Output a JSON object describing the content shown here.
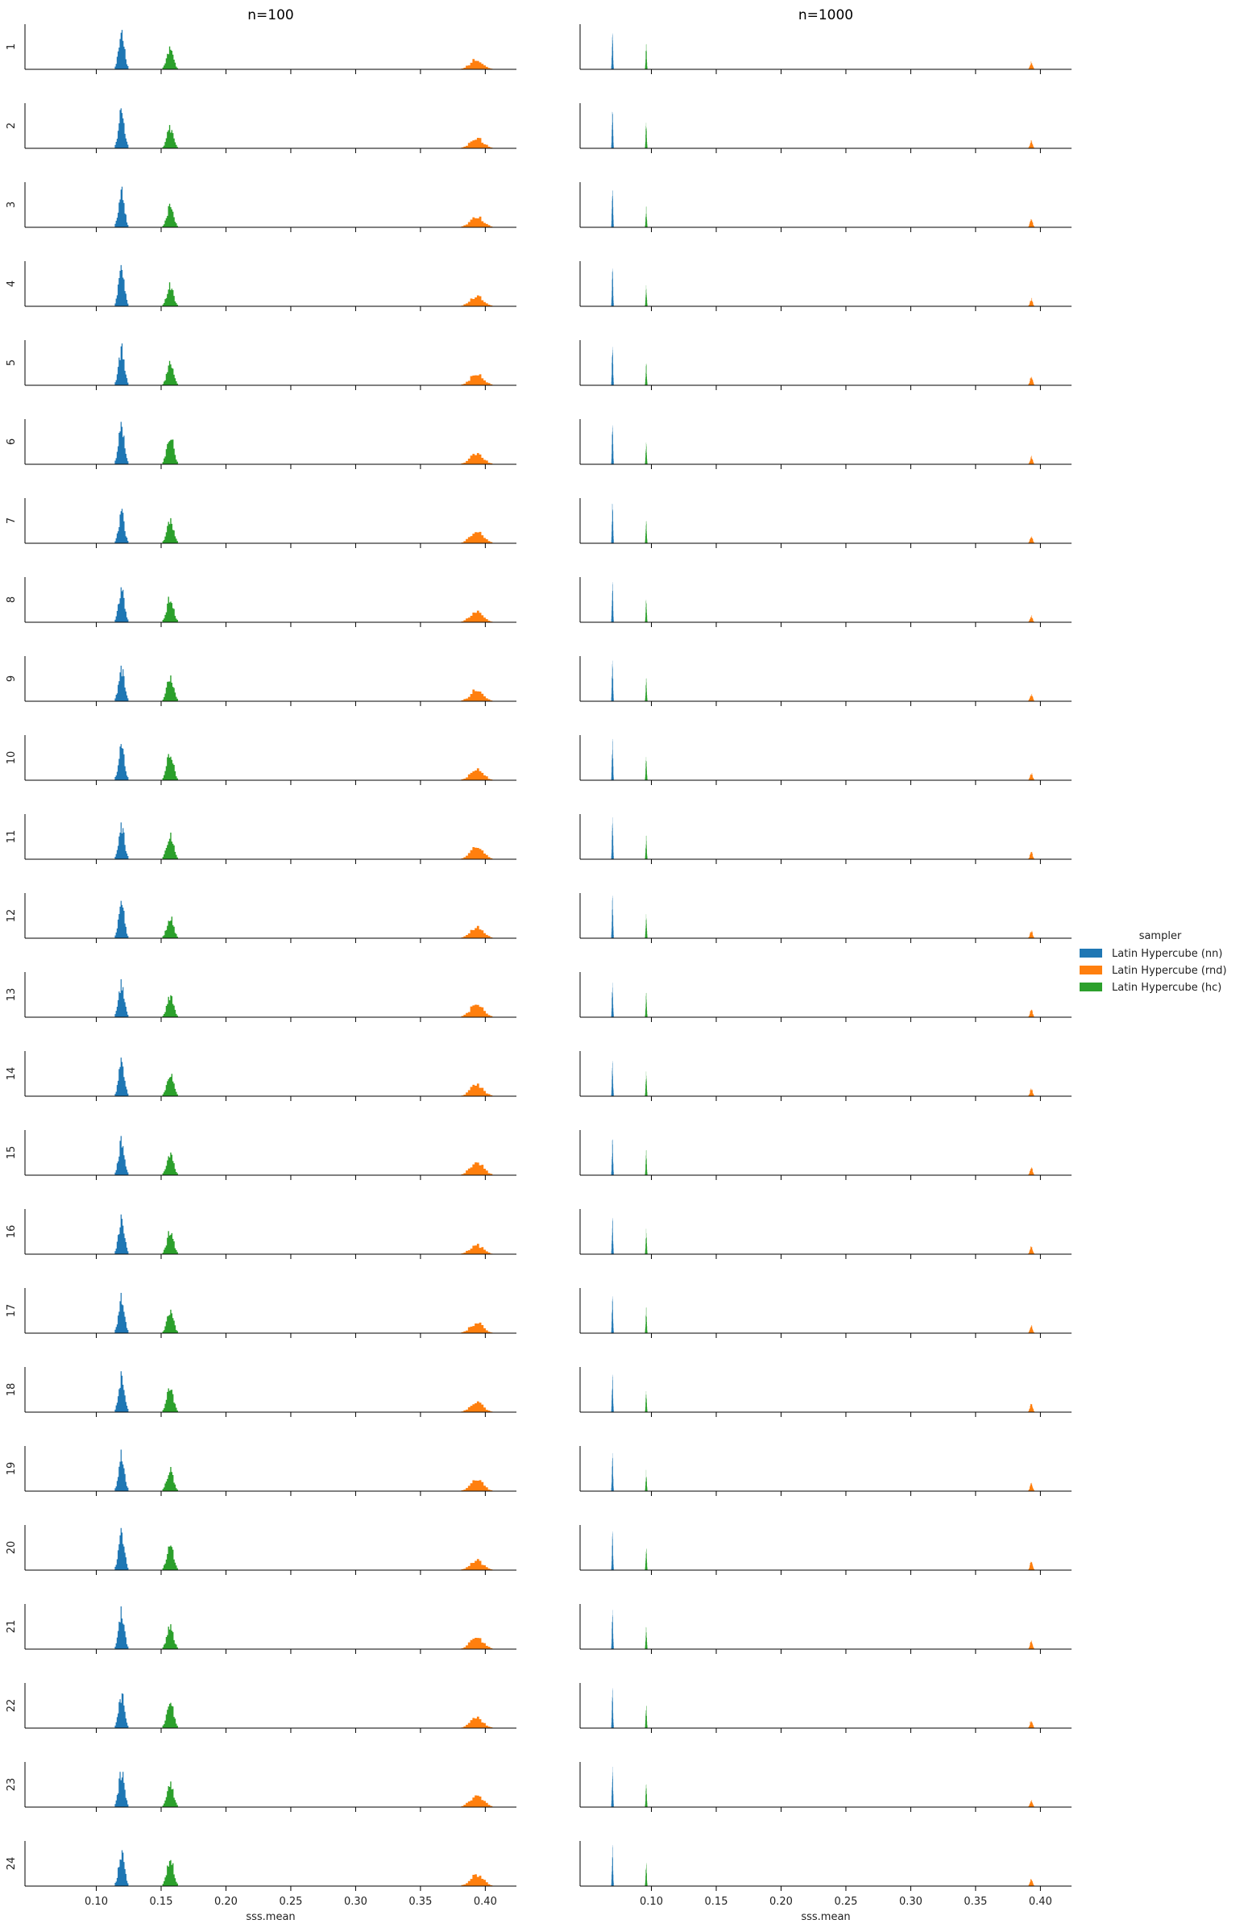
{
  "chart_data": {
    "type": "histogram-facet-grid",
    "xlabel": "sss.mean",
    "x_ticks": [
      0.1,
      0.15,
      0.2,
      0.25,
      0.3,
      0.35,
      0.4
    ],
    "x_tick_labels": [
      "0.10",
      "0.15",
      "0.20",
      "0.25",
      "0.30",
      "0.35",
      "0.40"
    ],
    "xlim": [
      0.045,
      0.424
    ],
    "grid": false,
    "legend_placement": "right",
    "legend_title": "sampler",
    "series": [
      {
        "name": "Latin Hypercube (nn)",
        "color": "#1f77b4"
      },
      {
        "name": "Latin Hypercube (rnd)",
        "color": "#ff7f0e"
      },
      {
        "name": "Latin Hypercube (hc)",
        "color": "#2ca02c"
      }
    ],
    "columns": [
      {
        "title": "n=100",
        "distributions": [
          {
            "sampler": "Latin Hypercube (nn)",
            "center": 0.1195,
            "spread": 0.0022,
            "peak": 1.0
          },
          {
            "sampler": "Latin Hypercube (hc)",
            "center": 0.157,
            "spread": 0.0025,
            "peak": 0.62
          },
          {
            "sampler": "Latin Hypercube (rnd)",
            "center": 0.3935,
            "spread": 0.005,
            "peak": 0.3
          }
        ]
      },
      {
        "title": "n=1000",
        "distributions": [
          {
            "sampler": "Latin Hypercube (nn)",
            "center": 0.07,
            "spread": 0.0004,
            "peak": 1.0
          },
          {
            "sampler": "Latin Hypercube (hc)",
            "center": 0.096,
            "spread": 0.0004,
            "peak": 0.6
          },
          {
            "sampler": "Latin Hypercube (rnd)",
            "center": 0.393,
            "spread": 0.001,
            "peak": 0.2
          }
        ]
      }
    ],
    "rows": [
      "1",
      "2",
      "3",
      "4",
      "5",
      "6",
      "7",
      "8",
      "9",
      "10",
      "11",
      "12",
      "13",
      "14",
      "15",
      "16",
      "17",
      "18",
      "19",
      "20",
      "21",
      "22",
      "23",
      "24"
    ]
  }
}
